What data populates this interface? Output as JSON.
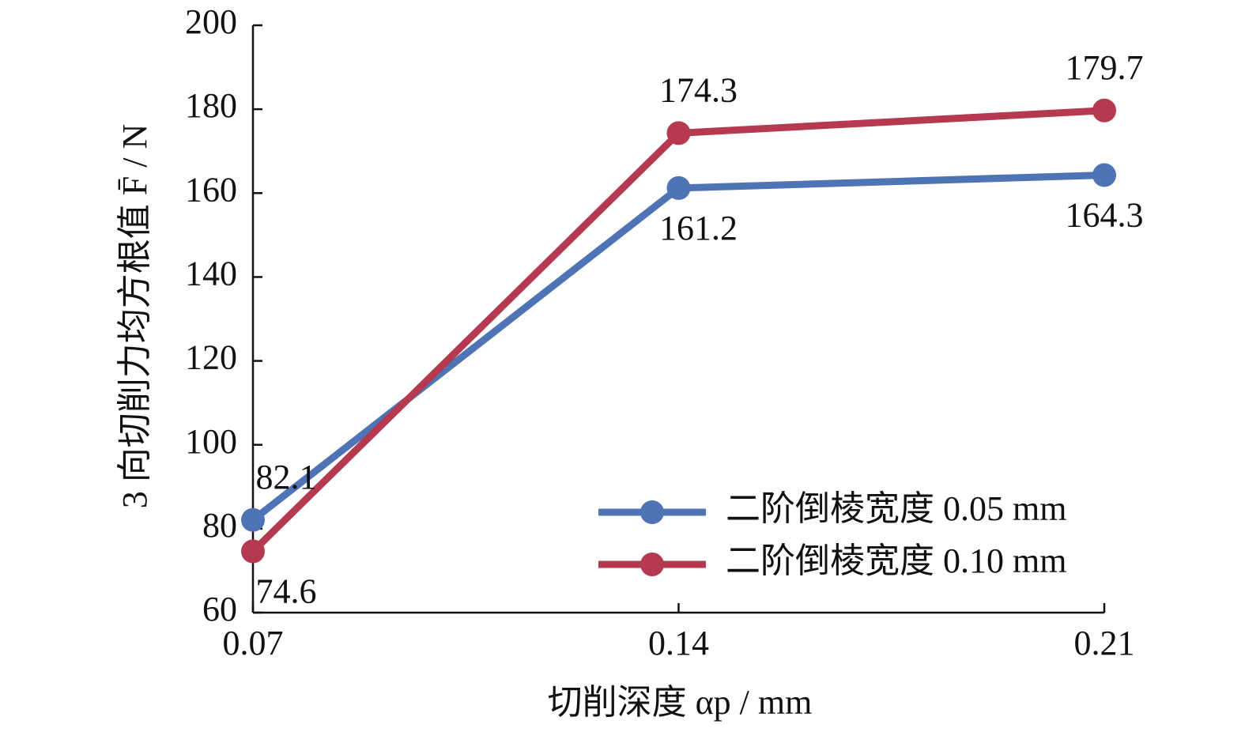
{
  "chart_data": {
    "type": "line",
    "y_label": "3 向切削力均方根值 F̄ / N",
    "x_label": "切削深度 αp / mm",
    "x": [
      0.07,
      0.14,
      0.21
    ],
    "series": [
      {
        "name": "二阶倒棱宽度 0.05 mm",
        "color": "#4f74b5",
        "values": [
          82.1,
          161.2,
          164.3
        ]
      },
      {
        "name": "二阶倒棱宽度 0.10 mm",
        "color": "#b5394f",
        "values": [
          74.6,
          174.3,
          179.7
        ]
      }
    ],
    "xlim": [
      0.07,
      0.21
    ],
    "xticks": [
      0.07,
      0.14,
      0.21
    ],
    "ylim": [
      60,
      200
    ],
    "yticks": [
      60,
      80,
      100,
      120,
      140,
      160,
      180,
      200
    ],
    "grid": false,
    "legend": "lower right"
  }
}
